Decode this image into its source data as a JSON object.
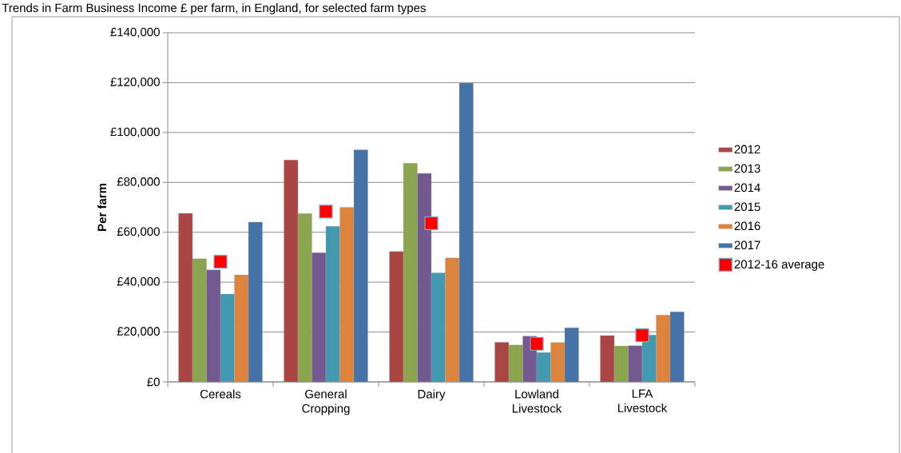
{
  "chart_data": {
    "type": "bar",
    "title": "Trends in Farm Business Income £ per farm, in England, for selected farm types",
    "ylabel": "Per farm",
    "categories": [
      "Cereals",
      "General Cropping",
      "Dairy",
      "Lowland Livestock",
      "LFA Livestock"
    ],
    "series": [
      {
        "name": "2012",
        "color": "#a94644",
        "values": [
          67600,
          89000,
          52300,
          15900,
          18600
        ]
      },
      {
        "name": "2013",
        "color": "#8aa54e",
        "values": [
          49400,
          67500,
          87700,
          14800,
          14400
        ]
      },
      {
        "name": "2014",
        "color": "#72598f",
        "values": [
          44900,
          51800,
          83600,
          18300,
          14500
        ]
      },
      {
        "name": "2015",
        "color": "#4399b0",
        "values": [
          35200,
          62400,
          43700,
          11800,
          18800
        ]
      },
      {
        "name": "2016",
        "color": "#dc843e",
        "values": [
          42900,
          70000,
          49700,
          15800,
          26800
        ]
      },
      {
        "name": "2017",
        "color": "#4573a7",
        "values": [
          64100,
          93100,
          119800,
          21700,
          28100
        ]
      },
      {
        "name": "2012-16 average",
        "type": "scatter",
        "marker": "square",
        "color": "#ff0000",
        "x": [
          "Cereals",
          "General Cropping",
          "Dairy",
          "Lowland Livestock",
          "LFA Livestock"
        ],
        "values": [
          48200,
          68300,
          63600,
          15300,
          18700
        ]
      }
    ],
    "ylim": [
      0,
      140000
    ],
    "yticks": [
      {
        "value": 0,
        "label": "£0"
      },
      {
        "value": 20000,
        "label": "£20,000"
      },
      {
        "value": 40000,
        "label": "£40,000"
      },
      {
        "value": 60000,
        "label": "£60,000"
      },
      {
        "value": 80000,
        "label": "£80,000"
      },
      {
        "value": 100000,
        "label": "£100,000"
      },
      {
        "value": 120000,
        "label": "£120,000"
      },
      {
        "value": 140000,
        "label": "£140,000"
      }
    ],
    "grid": "y",
    "legend": "right"
  }
}
